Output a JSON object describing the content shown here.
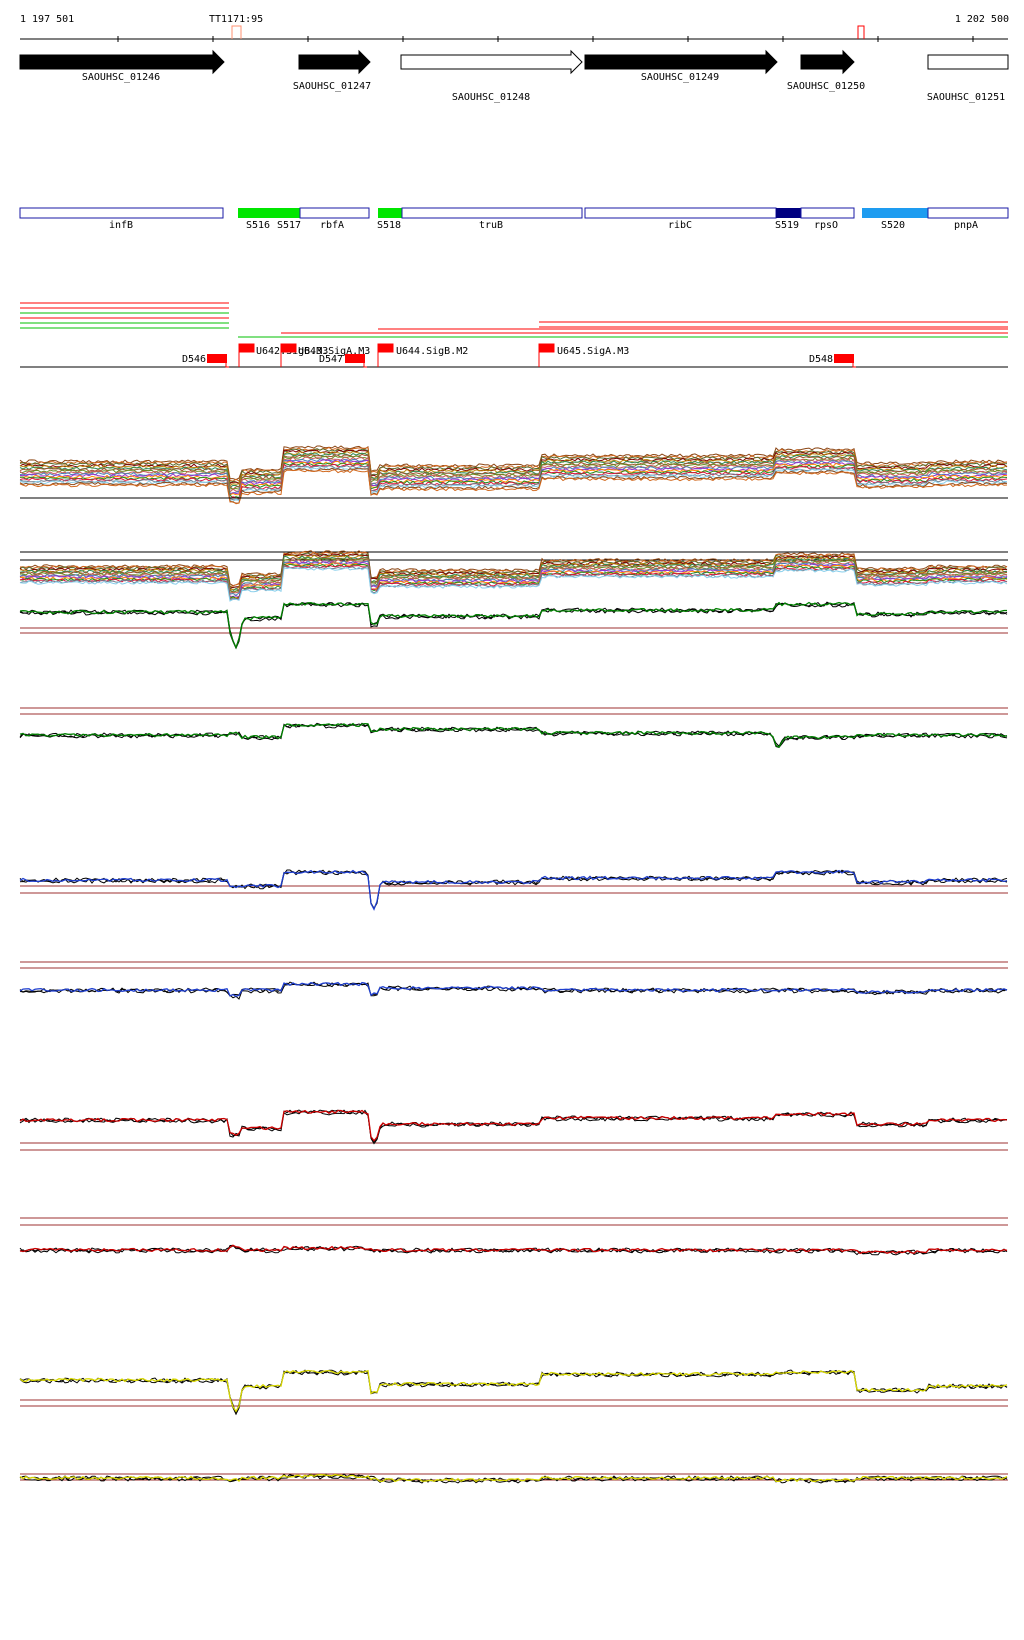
{
  "ruler": {
    "start_label": "1 197 501",
    "end_label": "1 202 500",
    "marker_label": "TT1171:95"
  },
  "genes": [
    {
      "name": "SAOUHSC_01246",
      "filled": true
    },
    {
      "name": "SAOUHSC_01247",
      "filled": true
    },
    {
      "name": "SAOUHSC_01248",
      "filled": false
    },
    {
      "name": "SAOUHSC_01249",
      "filled": true
    },
    {
      "name": "SAOUHSC_01250",
      "filled": true
    },
    {
      "name": "SAOUHSC_01251",
      "filled": false
    }
  ],
  "segments": [
    {
      "name": "infB"
    },
    {
      "name": "rbfA"
    },
    {
      "name": "truB"
    },
    {
      "name": "ribC"
    },
    {
      "name": "rpsO"
    },
    {
      "name": "pnpA"
    }
  ],
  "segment_labels": [
    "S516",
    "S517",
    "S518",
    "S519",
    "S520"
  ],
  "features": [
    {
      "label": "D546",
      "kind": "block"
    },
    {
      "label": "U642.SigB.M3",
      "kind": "flag"
    },
    {
      "label": "U643.SigA.M3",
      "kind": "flag"
    },
    {
      "label": "D547",
      "kind": "block"
    },
    {
      "label": "U644.SigB.M2",
      "kind": "flag"
    },
    {
      "label": "U645.SigA.M3",
      "kind": "flag"
    },
    {
      "label": "D548",
      "kind": "block"
    }
  ],
  "colors": {
    "gene_fill": "#000000",
    "segment_outline": "#1a1aa6",
    "segment_green": "#00e600",
    "segment_navy": "#000080",
    "segment_sky": "#1e9cf0",
    "feature_red": "#ff0000",
    "ref_line": "#9c3030",
    "green": "#008000",
    "blue": "#1f3fcf",
    "red": "#cc0000",
    "yellow": "#d8d800",
    "black": "#000000"
  },
  "tracks": [
    {
      "name": "heatmap-lines-1",
      "series_colors": [
        "black"
      ]
    },
    {
      "name": "heatmap-lines-2",
      "series_colors": [
        "black"
      ]
    },
    {
      "name": "green-track-1",
      "series_colors": [
        "green",
        "black",
        "black"
      ]
    },
    {
      "name": "green-track-2",
      "series_colors": [
        "green",
        "black",
        "black"
      ]
    },
    {
      "name": "blue-track-1",
      "series_colors": [
        "blue",
        "black",
        "black"
      ]
    },
    {
      "name": "blue-track-2",
      "series_colors": [
        "blue",
        "black",
        "black"
      ]
    },
    {
      "name": "red-track-1",
      "series_colors": [
        "red",
        "black",
        "black"
      ]
    },
    {
      "name": "red-track-2",
      "series_colors": [
        "red",
        "black",
        "black"
      ]
    },
    {
      "name": "yellow-track-1",
      "series_colors": [
        "yellow",
        "black",
        "black"
      ]
    },
    {
      "name": "yellow-track-2",
      "series_colors": [
        "yellow",
        "black",
        "black"
      ]
    }
  ]
}
